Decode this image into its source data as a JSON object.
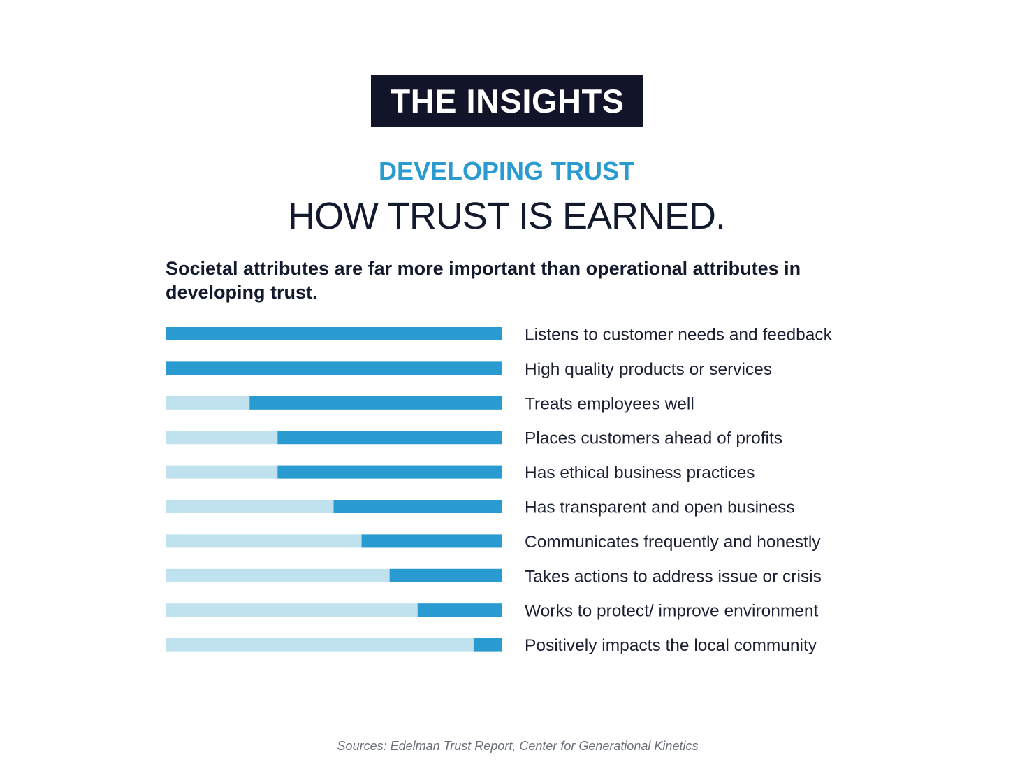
{
  "badge": "THE INSIGHTS",
  "kicker": "DEVELOPING TRUST",
  "headline": "HOW TRUST IS EARNED.",
  "lede": "Societal attributes are far more important than operational attributes in developing trust.",
  "source": "Sources: Edelman Trust Report, Center for Generational Kinetics",
  "colors": {
    "badge_bg": "#12152a",
    "accent": "#2a9bd1",
    "bar_dark": "#2a9bd1",
    "bar_light": "#bfe2ee"
  },
  "chart_data": {
    "type": "bar",
    "orientation": "horizontal",
    "title": "",
    "xlabel": "",
    "ylabel": "",
    "xlim": [
      0,
      12
    ],
    "grid": false,
    "categories": [
      "Listens to customer needs and feedback",
      "High quality products or services",
      "Treats employees well",
      "Places customers ahead of profits",
      "Has ethical business practices",
      "Has transparent and open business",
      "Communicates frequently and honestly",
      "Takes actions to address issue or crisis",
      "Works to protect/ improve environment",
      "Positively impacts the local community"
    ],
    "series": [
      {
        "values": [
          12,
          12,
          9,
          8,
          8,
          6,
          5,
          4,
          3,
          1
        ]
      }
    ]
  }
}
